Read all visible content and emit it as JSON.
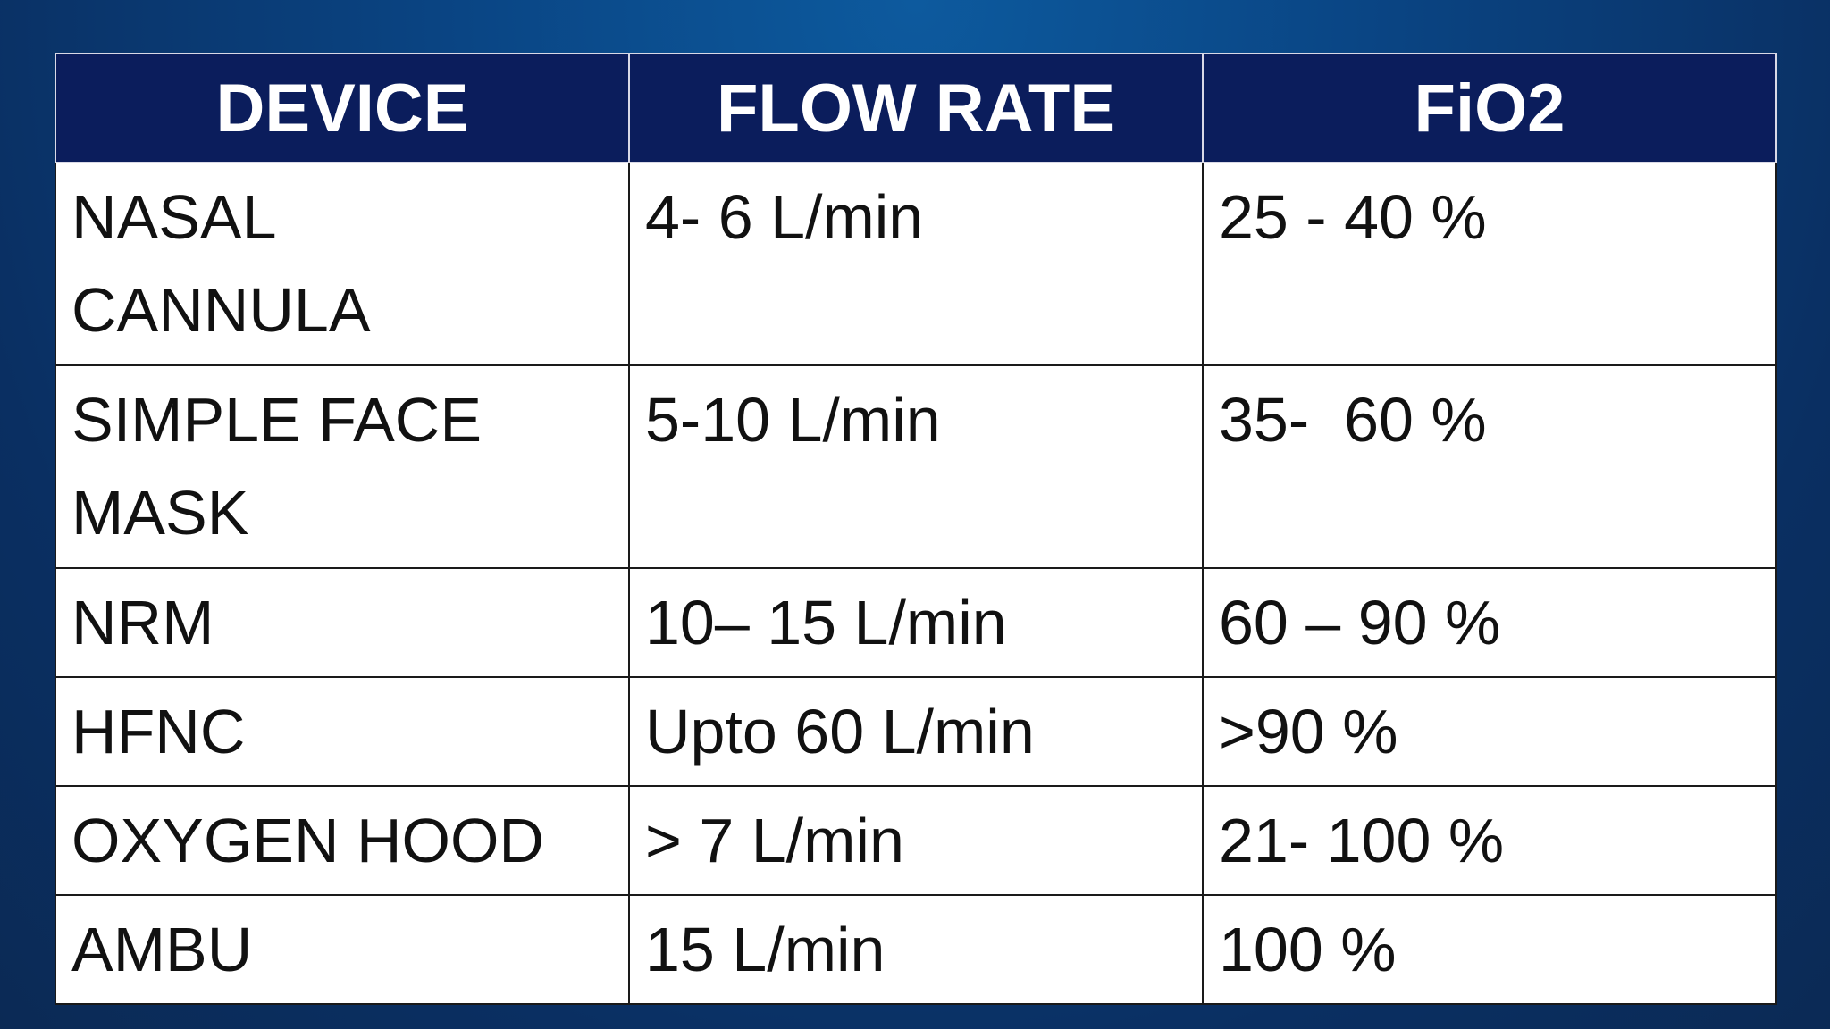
{
  "table": {
    "header": [
      "DEVICE",
      "FLOW RATE",
      "FiO2"
    ],
    "rows": [
      [
        "NASAL CANNULA",
        "4- 6 L/min",
        "25 - 40 %"
      ],
      [
        "SIMPLE FACE MASK",
        "5-10 L/min",
        "35-  60 %"
      ],
      [
        "NRM",
        "10– 15 L/min",
        "60 – 90 %"
      ],
      [
        "HFNC",
        "Upto 60 L/min",
        ">90 %"
      ],
      [
        "OXYGEN HOOD",
        "> 7 L/min",
        "21- 100 %"
      ],
      [
        "AMBU",
        "15 L/min",
        "100 %"
      ]
    ]
  }
}
